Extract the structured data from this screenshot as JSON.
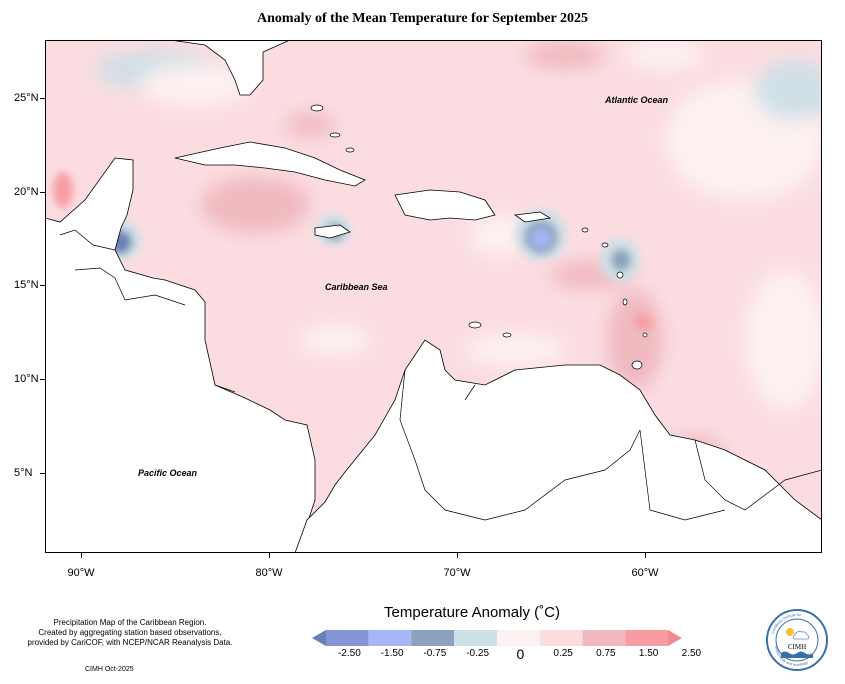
{
  "title": "Anomaly of the Mean Temperature for September 2025",
  "map": {
    "labels": {
      "atlantic": "Atlantic Ocean",
      "caribbean": "Caribbean Sea",
      "pacific": "Pacific Ocean"
    },
    "y_ticks": [
      "25°N",
      "20°N",
      "15°N",
      "10°N",
      "5°N"
    ],
    "x_ticks": [
      "90°W",
      "80°W",
      "70°W",
      "60°W"
    ]
  },
  "legend": {
    "title": "Temperature Anomaly (˚C)",
    "labels": [
      "-2.50",
      "-1.50",
      "-0.75",
      "-0.25",
      "0",
      "0.25",
      "0.75",
      "1.50",
      "2.50"
    ],
    "colors": [
      "#6a7fb2",
      "#8596d8",
      "#a6b6f6",
      "#8ba1bd",
      "#cfe0e6",
      "#fdf1f1",
      "#fbdde1",
      "#efb9bf",
      "#f79da2",
      "#f4898f"
    ]
  },
  "credit": {
    "line1": "Precipitation Map of the Caribbean Region.",
    "line2": "Created by aggregating station based observations,",
    "line3": "provided by CariCOF, with NCEP/NCAR Reanalysis Data."
  },
  "footer": "CIMH Oct-2025",
  "logo": {
    "text": "CIMH",
    "ring_top": "Caribbean Institute for",
    "ring_bottom": "Meteorology and Hydrology"
  }
}
